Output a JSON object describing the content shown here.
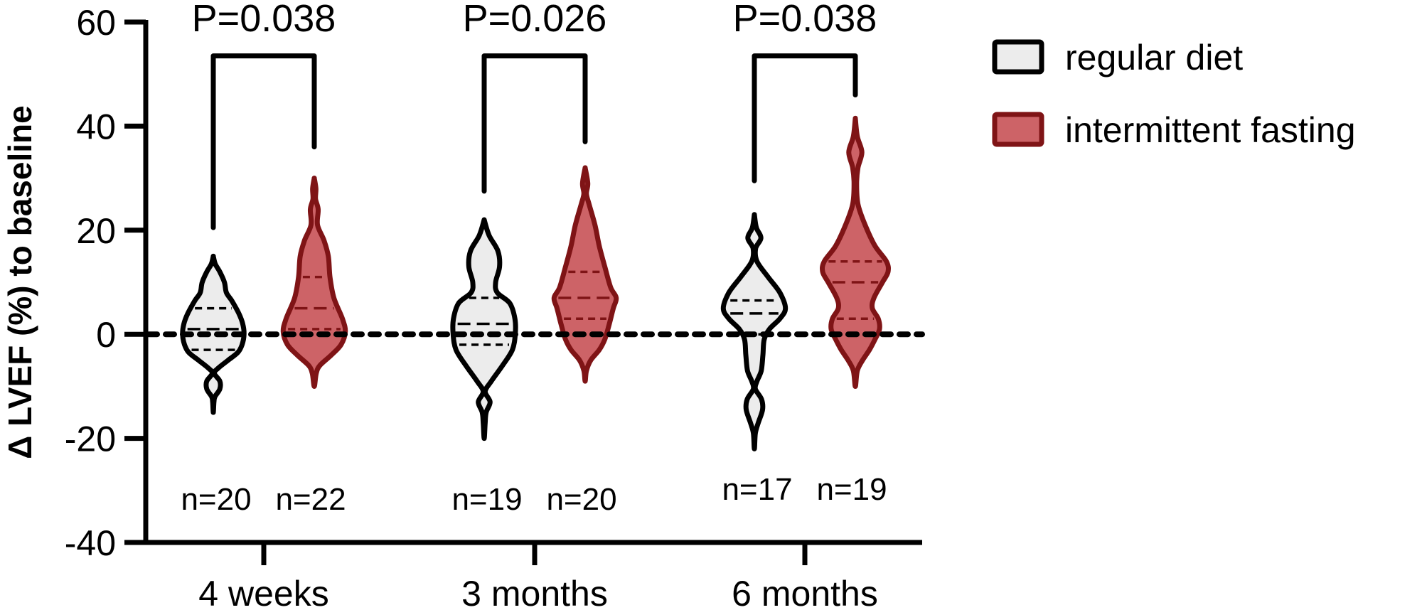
{
  "chart_data": {
    "type": "violin",
    "title": "",
    "ylabel": "Δ LVEF (%) to baseline",
    "xlabel": "",
    "ylim": [
      -40,
      60
    ],
    "yticks": [
      -40,
      -20,
      0,
      20,
      40,
      60
    ],
    "ytick_labels": [
      "-40",
      "-20",
      "0",
      "20",
      "40",
      "60"
    ],
    "reference_line": 0,
    "categories": [
      "4 weeks",
      "3 months",
      "6 months"
    ],
    "legend_position": "top-right",
    "series": [
      {
        "name": "regular diet",
        "fill": "#ececec",
        "stroke": "#000000",
        "n_labels": [
          "n=20",
          "n=19",
          "n=17"
        ],
        "violins": [
          {
            "min": -15,
            "max": 15,
            "q1": -3,
            "median": 1,
            "q3": 5,
            "density": [
              [
                15,
                0
              ],
              [
                13.5,
                0.06
              ],
              [
                12,
                0.2
              ],
              [
                10,
                0.34
              ],
              [
                8,
                0.4
              ],
              [
                6.5,
                0.56
              ],
              [
                4,
                0.78
              ],
              [
                2,
                0.9
              ],
              [
                0,
                0.94
              ],
              [
                -2,
                0.88
              ],
              [
                -3.5,
                0.75
              ],
              [
                -5,
                0.45
              ],
              [
                -6.5,
                0.15
              ],
              [
                -7.5,
                0.03
              ],
              [
                -9,
                0.2
              ],
              [
                -10.5,
                0.2
              ],
              [
                -12,
                0.05
              ],
              [
                -13,
                0.02
              ],
              [
                -15,
                0
              ]
            ]
          },
          {
            "min": -20,
            "max": 22,
            "q1": -2,
            "median": 2,
            "q3": 7,
            "density": [
              [
                22,
                0
              ],
              [
                19,
                0.15
              ],
              [
                16,
                0.42
              ],
              [
                13,
                0.47
              ],
              [
                10,
                0.35
              ],
              [
                8,
                0.4
              ],
              [
                6,
                0.78
              ],
              [
                3,
                0.94
              ],
              [
                0,
                0.95
              ],
              [
                -3,
                0.86
              ],
              [
                -6,
                0.56
              ],
              [
                -9,
                0.22
              ],
              [
                -11,
                0.03
              ],
              [
                -13,
                0.18
              ],
              [
                -15,
                0.06
              ],
              [
                -17,
                0.03
              ],
              [
                -20,
                0
              ]
            ]
          },
          {
            "min": -22,
            "max": 23,
            "q1": 0,
            "median": 4,
            "q3": 6.5,
            "density": [
              [
                23,
                0
              ],
              [
                20.5,
                0.06
              ],
              [
                18.5,
                0.2
              ],
              [
                16.5,
                0.04
              ],
              [
                14,
                0.08
              ],
              [
                11,
                0.42
              ],
              [
                8,
                0.78
              ],
              [
                5,
                0.95
              ],
              [
                3,
                0.78
              ],
              [
                1,
                0.46
              ],
              [
                -1,
                0.3
              ],
              [
                -4,
                0.26
              ],
              [
                -7,
                0.21
              ],
              [
                -9,
                0.08
              ],
              [
                -10.5,
                0.03
              ],
              [
                -12.5,
                0.22
              ],
              [
                -14.5,
                0.25
              ],
              [
                -17,
                0.12
              ],
              [
                -19,
                0.03
              ],
              [
                -22,
                0
              ]
            ]
          }
        ]
      },
      {
        "name": "intermittent fasting",
        "fill": "#cd6367",
        "stroke": "#7f1416",
        "n_labels": [
          "n=22",
          "n=20",
          "n=19"
        ],
        "violins": [
          {
            "min": -10,
            "max": 30,
            "q1": 1,
            "median": 5,
            "q3": 11,
            "density": [
              [
                30,
                0
              ],
              [
                28,
                0.05
              ],
              [
                26,
                0.04
              ],
              [
                24,
                0.12
              ],
              [
                21,
                0.1
              ],
              [
                18,
                0.3
              ],
              [
                15,
                0.43
              ],
              [
                11,
                0.48
              ],
              [
                7,
                0.6
              ],
              [
                3,
                0.86
              ],
              [
                0.5,
                0.95
              ],
              [
                -2,
                0.82
              ],
              [
                -4,
                0.52
              ],
              [
                -6,
                0.17
              ],
              [
                -7.5,
                0.06
              ],
              [
                -10,
                0
              ]
            ]
          },
          {
            "min": -9,
            "max": 32,
            "q1": 3,
            "median": 7,
            "q3": 12,
            "density": [
              [
                32,
                0
              ],
              [
                29,
                0.08
              ],
              [
                27,
                0.04
              ],
              [
                25,
                0.12
              ],
              [
                21,
                0.3
              ],
              [
                17,
                0.43
              ],
              [
                13,
                0.6
              ],
              [
                9,
                0.78
              ],
              [
                7,
                0.95
              ],
              [
                5,
                0.86
              ],
              [
                2,
                0.74
              ],
              [
                -1,
                0.6
              ],
              [
                -3,
                0.43
              ],
              [
                -5,
                0.17
              ],
              [
                -7,
                0.04
              ],
              [
                -9,
                0
              ]
            ]
          },
          {
            "min": -10,
            "max": 41.5,
            "q1": 3,
            "median": 10,
            "q3": 14,
            "density": [
              [
                41.5,
                0
              ],
              [
                38,
                0.06
              ],
              [
                35,
                0.2
              ],
              [
                32,
                0.08
              ],
              [
                29,
                0.04
              ],
              [
                25,
                0.08
              ],
              [
                21,
                0.3
              ],
              [
                17,
                0.6
              ],
              [
                14,
                0.95
              ],
              [
                12,
                1.0
              ],
              [
                10,
                0.83
              ],
              [
                7,
                0.57
              ],
              [
                5,
                0.52
              ],
              [
                3,
                0.7
              ],
              [
                1,
                0.74
              ],
              [
                -1,
                0.6
              ],
              [
                -3,
                0.43
              ],
              [
                -5,
                0.22
              ],
              [
                -7,
                0.06
              ],
              [
                -10,
                0
              ]
            ]
          }
        ]
      }
    ],
    "comparisons": [
      {
        "label": "P=0.038",
        "left_end": 20.5,
        "right_end": 36
      },
      {
        "label": "P=0.026",
        "left_end": 27.5,
        "right_end": 37
      },
      {
        "label": "P=0.038",
        "left_end": 29.5,
        "right_end": 46
      }
    ],
    "bracket_level": 53.5
  }
}
